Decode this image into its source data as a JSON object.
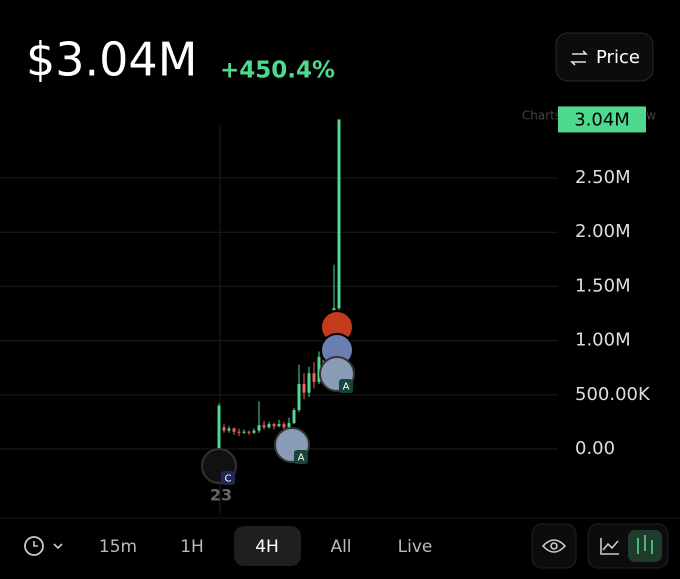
{
  "header": {
    "price": "$3.04M",
    "change": "+450.4%",
    "price_button": "Price",
    "attribution": "Charts by TradingView"
  },
  "chart_data": {
    "type": "candlestick",
    "up_color": "#4fd98f",
    "down_color": "#f0605d",
    "ylim": [
      -470000,
      3127000
    ],
    "yticks": [
      {
        "value": 0,
        "label": "0.00"
      },
      {
        "value": 500000,
        "label": "500.00K"
      },
      {
        "value": 1000000,
        "label": "1.00M"
      },
      {
        "value": 1500000,
        "label": "1.50M"
      },
      {
        "value": 2000000,
        "label": "2.00M"
      },
      {
        "value": 2500000,
        "label": "2.50M"
      }
    ],
    "grid": true,
    "last_price": {
      "value": 3040000,
      "label": "3.04M"
    },
    "open": [
      0,
      200000,
      170000,
      190000,
      160000,
      150000,
      160000,
      150000,
      170000,
      220000,
      200000,
      230000,
      210000,
      230000,
      200000,
      240000,
      360000,
      600000,
      520000,
      700000,
      620000,
      850000,
      780000,
      1000000,
      1300000
    ],
    "high": [
      420000,
      230000,
      210000,
      200000,
      190000,
      180000,
      170000,
      190000,
      440000,
      260000,
      250000,
      240000,
      270000,
      250000,
      290000,
      380000,
      780000,
      700000,
      760000,
      800000,
      900000,
      950000,
      1100000,
      1700000,
      3040000
    ],
    "low": [
      0,
      150000,
      150000,
      130000,
      120000,
      140000,
      130000,
      140000,
      150000,
      180000,
      190000,
      180000,
      200000,
      170000,
      190000,
      230000,
      340000,
      460000,
      480000,
      560000,
      600000,
      700000,
      750000,
      950000,
      1280000
    ],
    "close": [
      400000,
      170000,
      190000,
      160000,
      150000,
      160000,
      150000,
      170000,
      220000,
      200000,
      230000,
      210000,
      230000,
      200000,
      240000,
      360000,
      600000,
      520000,
      700000,
      620000,
      850000,
      780000,
      1000000,
      1300000,
      3040000
    ],
    "markers": [
      {
        "badge": "C",
        "count": "23"
      },
      {
        "badge": "A"
      },
      {
        "badge": "A"
      }
    ]
  },
  "toolbar": {
    "intervals": [
      "15m",
      "1H",
      "4H",
      "All",
      "Live"
    ],
    "selected": "4H"
  }
}
